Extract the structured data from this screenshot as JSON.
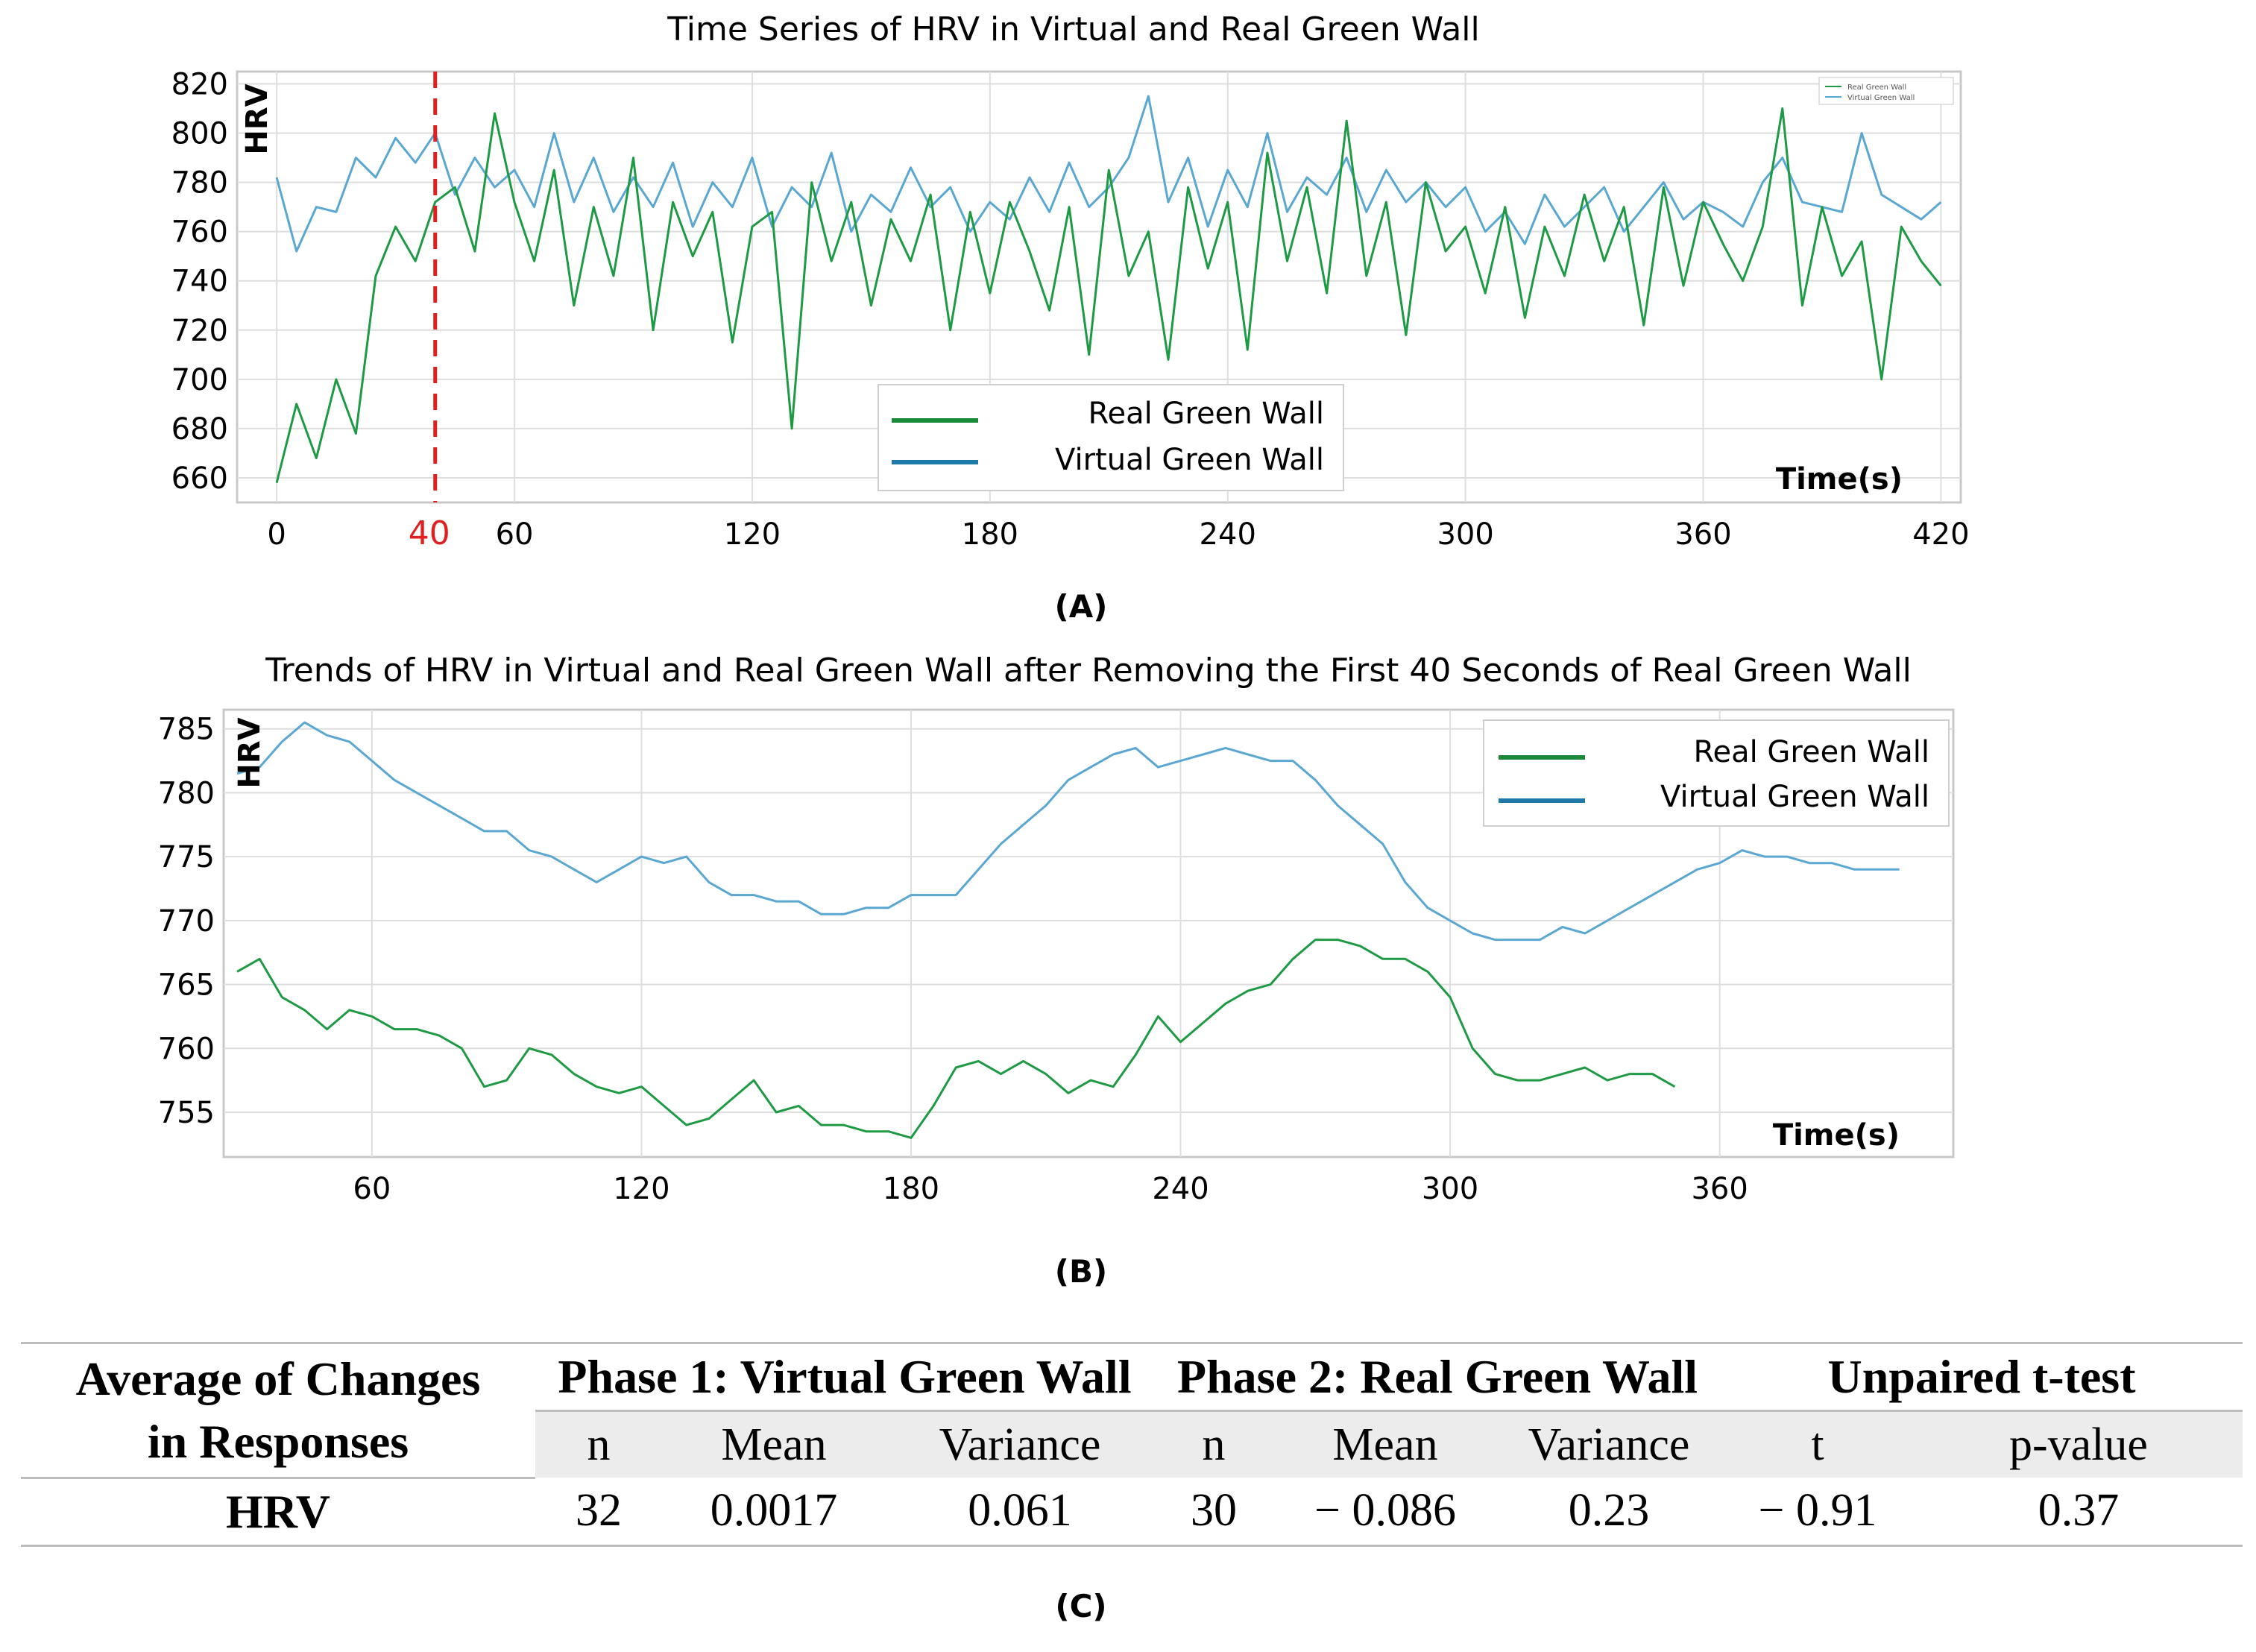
{
  "panel_labels": [
    "(A)",
    "(B)",
    "(C)"
  ],
  "colors": {
    "real": "#1e9a44",
    "virtual": "#5aa7d2",
    "marker": "#e02020",
    "legend_real": "#1a8a3a",
    "legend_virtual": "#1e78a8"
  },
  "chart_data": [
    {
      "type": "line",
      "title": "Time Series of HRV in Virtual and Real Green Wall",
      "xlabel": "Time(s)",
      "ylabel": "HRV",
      "xlim": [
        -10,
        425
      ],
      "ylim": [
        650,
        825
      ],
      "x_ticks": [
        0,
        60,
        120,
        180,
        240,
        300,
        360,
        420
      ],
      "y_ticks": [
        660,
        680,
        700,
        720,
        740,
        760,
        780,
        800,
        820
      ],
      "marker_line": {
        "x": 40,
        "label": "40"
      },
      "legend_position": "bottom-center",
      "series": [
        {
          "name": "Real Green Wall",
          "x": [
            0,
            5,
            10,
            15,
            20,
            25,
            30,
            35,
            40,
            45,
            50,
            55,
            60,
            65,
            70,
            75,
            80,
            85,
            90,
            95,
            100,
            105,
            110,
            115,
            120,
            125,
            130,
            135,
            140,
            145,
            150,
            155,
            160,
            165,
            170,
            175,
            180,
            185,
            190,
            195,
            200,
            205,
            210,
            215,
            220,
            225,
            230,
            235,
            240,
            245,
            250,
            255,
            260,
            265,
            270,
            275,
            280,
            285,
            290,
            295,
            300,
            305,
            310,
            315,
            320,
            325,
            330,
            335,
            340,
            345,
            350,
            355,
            360,
            365,
            370,
            375,
            380,
            385,
            390,
            395,
            400,
            405,
            410,
            415,
            420
          ],
          "values": [
            658,
            690,
            668,
            700,
            678,
            742,
            762,
            748,
            772,
            778,
            752,
            808,
            772,
            748,
            785,
            730,
            770,
            742,
            790,
            720,
            772,
            750,
            768,
            715,
            762,
            768,
            680,
            780,
            748,
            772,
            730,
            765,
            748,
            775,
            720,
            768,
            735,
            772,
            752,
            728,
            770,
            710,
            785,
            742,
            760,
            708,
            778,
            745,
            772,
            712,
            792,
            748,
            778,
            735,
            805,
            742,
            772,
            718,
            780,
            752,
            762,
            735,
            770,
            725,
            762,
            742,
            775,
            748,
            770,
            722,
            778,
            738,
            772,
            755,
            740,
            762,
            810,
            730,
            770,
            742,
            756,
            700,
            762,
            748,
            738
          ],
          "color": "#1e9a44"
        },
        {
          "name": "Virtual Green Wall",
          "x": [
            0,
            5,
            10,
            15,
            20,
            25,
            30,
            35,
            40,
            45,
            50,
            55,
            60,
            65,
            70,
            75,
            80,
            85,
            90,
            95,
            100,
            105,
            110,
            115,
            120,
            125,
            130,
            135,
            140,
            145,
            150,
            155,
            160,
            165,
            170,
            175,
            180,
            185,
            190,
            195,
            200,
            205,
            210,
            215,
            220,
            225,
            230,
            235,
            240,
            245,
            250,
            255,
            260,
            265,
            270,
            275,
            280,
            285,
            290,
            295,
            300,
            305,
            310,
            315,
            320,
            325,
            330,
            335,
            340,
            345,
            350,
            355,
            360,
            365,
            370,
            375,
            380,
            385,
            390,
            395,
            400,
            405,
            410,
            415,
            420
          ],
          "values": [
            782,
            752,
            770,
            768,
            790,
            782,
            798,
            788,
            800,
            775,
            790,
            778,
            785,
            770,
            800,
            772,
            790,
            768,
            782,
            770,
            788,
            762,
            780,
            770,
            790,
            762,
            778,
            770,
            792,
            760,
            775,
            768,
            786,
            770,
            778,
            760,
            772,
            765,
            782,
            768,
            788,
            770,
            778,
            790,
            815,
            772,
            790,
            762,
            785,
            770,
            800,
            768,
            782,
            775,
            790,
            768,
            785,
            772,
            780,
            770,
            778,
            760,
            768,
            755,
            775,
            762,
            770,
            778,
            760,
            770,
            780,
            765,
            772,
            768,
            762,
            780,
            790,
            772,
            770,
            768,
            800,
            775,
            770,
            765,
            772
          ],
          "color": "#5aa7d2"
        }
      ]
    },
    {
      "type": "line",
      "title": "Trends of HRV in Virtual and Real Green Wall after Removing the First 40 Seconds of Real Green Wall",
      "xlabel": "Time(s)",
      "ylabel": "HRV",
      "xlim": [
        27,
        412
      ],
      "ylim": [
        751.5,
        786.5
      ],
      "x_ticks": [
        60,
        120,
        180,
        240,
        300,
        360
      ],
      "y_ticks": [
        755,
        760,
        765,
        770,
        775,
        780,
        785
      ],
      "legend_position": "top-right",
      "series": [
        {
          "name": "Real Green Wall",
          "x": [
            30,
            35,
            40,
            45,
            50,
            55,
            60,
            65,
            70,
            75,
            80,
            85,
            90,
            95,
            100,
            105,
            110,
            115,
            120,
            125,
            130,
            135,
            140,
            145,
            150,
            155,
            160,
            165,
            170,
            175,
            180,
            185,
            190,
            195,
            200,
            205,
            210,
            215,
            220,
            225,
            230,
            235,
            240,
            245,
            250,
            255,
            260,
            265,
            270,
            275,
            280,
            285,
            290,
            295,
            300,
            305,
            310,
            315,
            320,
            325,
            330,
            335,
            340,
            345,
            350
          ],
          "values": [
            766,
            767,
            764,
            763,
            761.5,
            763,
            762.5,
            761.5,
            761.5,
            761,
            760,
            757,
            757.5,
            760,
            759.5,
            758,
            757,
            756.5,
            757,
            755.5,
            754,
            754.5,
            756,
            757.5,
            755,
            755.5,
            754,
            754,
            753.5,
            753.5,
            753,
            755.5,
            758.5,
            759,
            758,
            759,
            758,
            756.5,
            757.5,
            757,
            759.5,
            762.5,
            760.5,
            762,
            763.5,
            764.5,
            765,
            767,
            768.5,
            768.5,
            768,
            767,
            767,
            766,
            764,
            760,
            758,
            757.5,
            757.5,
            758,
            758.5,
            757.5,
            758,
            758,
            757
          ],
          "color": "#1e9a44"
        },
        {
          "name": "Virtual Green Wall",
          "x": [
            30,
            35,
            40,
            45,
            50,
            55,
            60,
            65,
            70,
            75,
            80,
            85,
            90,
            95,
            100,
            105,
            110,
            115,
            120,
            125,
            130,
            135,
            140,
            145,
            150,
            155,
            160,
            165,
            170,
            175,
            180,
            185,
            190,
            195,
            200,
            205,
            210,
            215,
            220,
            225,
            230,
            235,
            240,
            245,
            250,
            255,
            260,
            265,
            270,
            275,
            280,
            285,
            290,
            295,
            300,
            305,
            310,
            315,
            320,
            325,
            330,
            335,
            340,
            345,
            350,
            355,
            360,
            365,
            370,
            375,
            380,
            385,
            390,
            395,
            400
          ],
          "values": [
            781.5,
            782,
            784,
            785.5,
            784.5,
            784,
            782.5,
            781,
            780,
            779,
            778,
            777,
            777,
            775.5,
            775,
            774,
            773,
            774,
            775,
            774.5,
            775,
            773,
            772,
            772,
            771.5,
            771.5,
            770.5,
            770.5,
            771,
            771,
            772,
            772,
            772,
            774,
            776,
            777.5,
            779,
            781,
            782,
            783,
            783.5,
            782,
            782.5,
            783,
            783.5,
            783,
            782.5,
            782.5,
            781,
            779,
            777.5,
            776,
            773,
            771,
            770,
            769,
            768.5,
            768.5,
            768.5,
            769.5,
            769,
            770,
            771,
            772,
            773,
            774,
            774.5,
            775.5,
            775,
            775,
            774.5,
            774.5,
            774,
            774,
            774
          ],
          "color": "#5aa7d2"
        }
      ]
    },
    {
      "type": "table",
      "row_header": "Average of Changes in Responses",
      "row_header_lines": [
        "Average of Changes",
        "in Responses"
      ],
      "groups": [
        "Phase 1: Virtual Green Wall",
        "Phase 2: Real Green Wall",
        "Unpaired t-test"
      ],
      "columns": [
        "n",
        "Mean",
        "Variance",
        "n",
        "Mean",
        "Variance",
        "t",
        "p-value"
      ],
      "rows": [
        {
          "label": "HRV",
          "values": [
            "32",
            "0.0017",
            "0.061",
            "30",
            "− 0.086",
            "0.23",
            "− 0.91",
            "0.37"
          ]
        }
      ]
    }
  ]
}
